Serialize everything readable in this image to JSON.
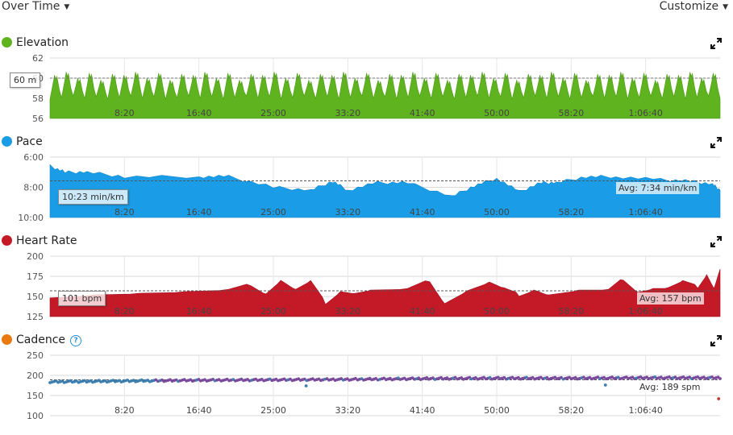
{
  "toolbar": {
    "view_label": "Over Time",
    "customize_label": "Customize"
  },
  "colors": {
    "elevation": "#5fb31e",
    "pace": "#1a9de6",
    "heart_rate": "#c41a28",
    "cadence": "#7a4a9c",
    "cadence_blue": "#3c7fb0",
    "cadence_title_dot": "#e87a10",
    "cadence_outlier": "#c0392b"
  },
  "chart_data": [
    {
      "type": "area",
      "title": "Elevation",
      "y_ticks": [
        "62",
        "60",
        "58",
        "56"
      ],
      "ylim": [
        56,
        62
      ],
      "x_ticks": [
        "8:20",
        "16:40",
        "25:00",
        "33:20",
        "41:40",
        "50:00",
        "58:20",
        "1:06:40"
      ],
      "x_range_sec": [
        0,
        4500
      ],
      "callout": "60 m",
      "baseline_value": 60.0,
      "pattern": {
        "peaks": 58,
        "peak_values": [
          60.3,
          60.6,
          60.0,
          60.5,
          59.8,
          60.4
        ],
        "trough_value": 57.9
      }
    },
    {
      "type": "area",
      "title": "Pace",
      "y_ticks": [
        "6:00",
        "8:00",
        "10:00"
      ],
      "ylim_min_per_km": [
        6,
        10
      ],
      "inverted": true,
      "x_ticks": [
        "8:20",
        "16:40",
        "25:00",
        "33:20",
        "41:40",
        "50:00",
        "58:20",
        "1:06:40"
      ],
      "callout": "10:23 min/km",
      "average": "Avg: 7:34 min/km",
      "average_value": 7.57,
      "x_sec": [
        0,
        100,
        250,
        500,
        1000,
        1200,
        1500,
        1750,
        1900,
        2000,
        2200,
        2400,
        2700,
        2850,
        3000,
        3150,
        3300,
        3400,
        3600,
        3800,
        4100,
        4300,
        4450,
        4500
      ],
      "values_min_per_km": [
        6.6,
        7.0,
        7.0,
        7.3,
        7.3,
        7.3,
        8.0,
        8.2,
        7.6,
        8.2,
        7.7,
        7.7,
        8.6,
        7.9,
        7.4,
        8.3,
        7.7,
        7.7,
        7.3,
        7.3,
        7.5,
        7.6,
        7.8,
        8.2
      ]
    },
    {
      "type": "area",
      "title": "Heart Rate",
      "y_ticks": [
        "200",
        "175",
        "150",
        "125"
      ],
      "ylim": [
        125,
        200
      ],
      "x_ticks": [
        "8:20",
        "16:40",
        "25:00",
        "33:20",
        "41:40",
        "50:00",
        "58:20",
        "1:06:40"
      ],
      "callout": "101 bpm",
      "average": "Avg: 157 bpm",
      "average_value": 157,
      "x_sec": [
        0,
        300,
        600,
        900,
        1200,
        1350,
        1450,
        1550,
        1650,
        1750,
        1850,
        1950,
        2050,
        2150,
        2400,
        2550,
        2650,
        2800,
        2950,
        3050,
        3150,
        3250,
        3350,
        3550,
        3750,
        3850,
        3950,
        4050,
        4150,
        4250,
        4350,
        4410,
        4460,
        4500
      ],
      "values": [
        150,
        153,
        154,
        155,
        157,
        165,
        154,
        170,
        158,
        168,
        142,
        157,
        154,
        157,
        158,
        170,
        142,
        157,
        167,
        159,
        152,
        159,
        152,
        157,
        157,
        172,
        156,
        160,
        160,
        168,
        162,
        178,
        160,
        184
      ]
    },
    {
      "type": "scatter",
      "title": "Cadence",
      "y_ticks": [
        "250",
        "200",
        "150",
        "100"
      ],
      "ylim": [
        100,
        250
      ],
      "x_ticks": [
        "8:20",
        "16:40",
        "25:00",
        "33:20",
        "41:40",
        "50:00",
        "58:20",
        "1:06:40"
      ],
      "average": "Avg: 189 spm",
      "average_value": 189,
      "trend_x_sec": [
        0,
        500,
        1000,
        1500,
        2000,
        2500,
        3000,
        3500,
        4000,
        4500
      ],
      "trend_values": [
        184,
        186,
        188,
        189,
        190,
        192,
        193,
        193,
        194,
        194
      ],
      "outliers": [
        {
          "x_sec": 1720,
          "value": 174
        },
        {
          "x_sec": 3730,
          "value": 176
        },
        {
          "x_sec": 4490,
          "value": 142
        }
      ]
    }
  ]
}
